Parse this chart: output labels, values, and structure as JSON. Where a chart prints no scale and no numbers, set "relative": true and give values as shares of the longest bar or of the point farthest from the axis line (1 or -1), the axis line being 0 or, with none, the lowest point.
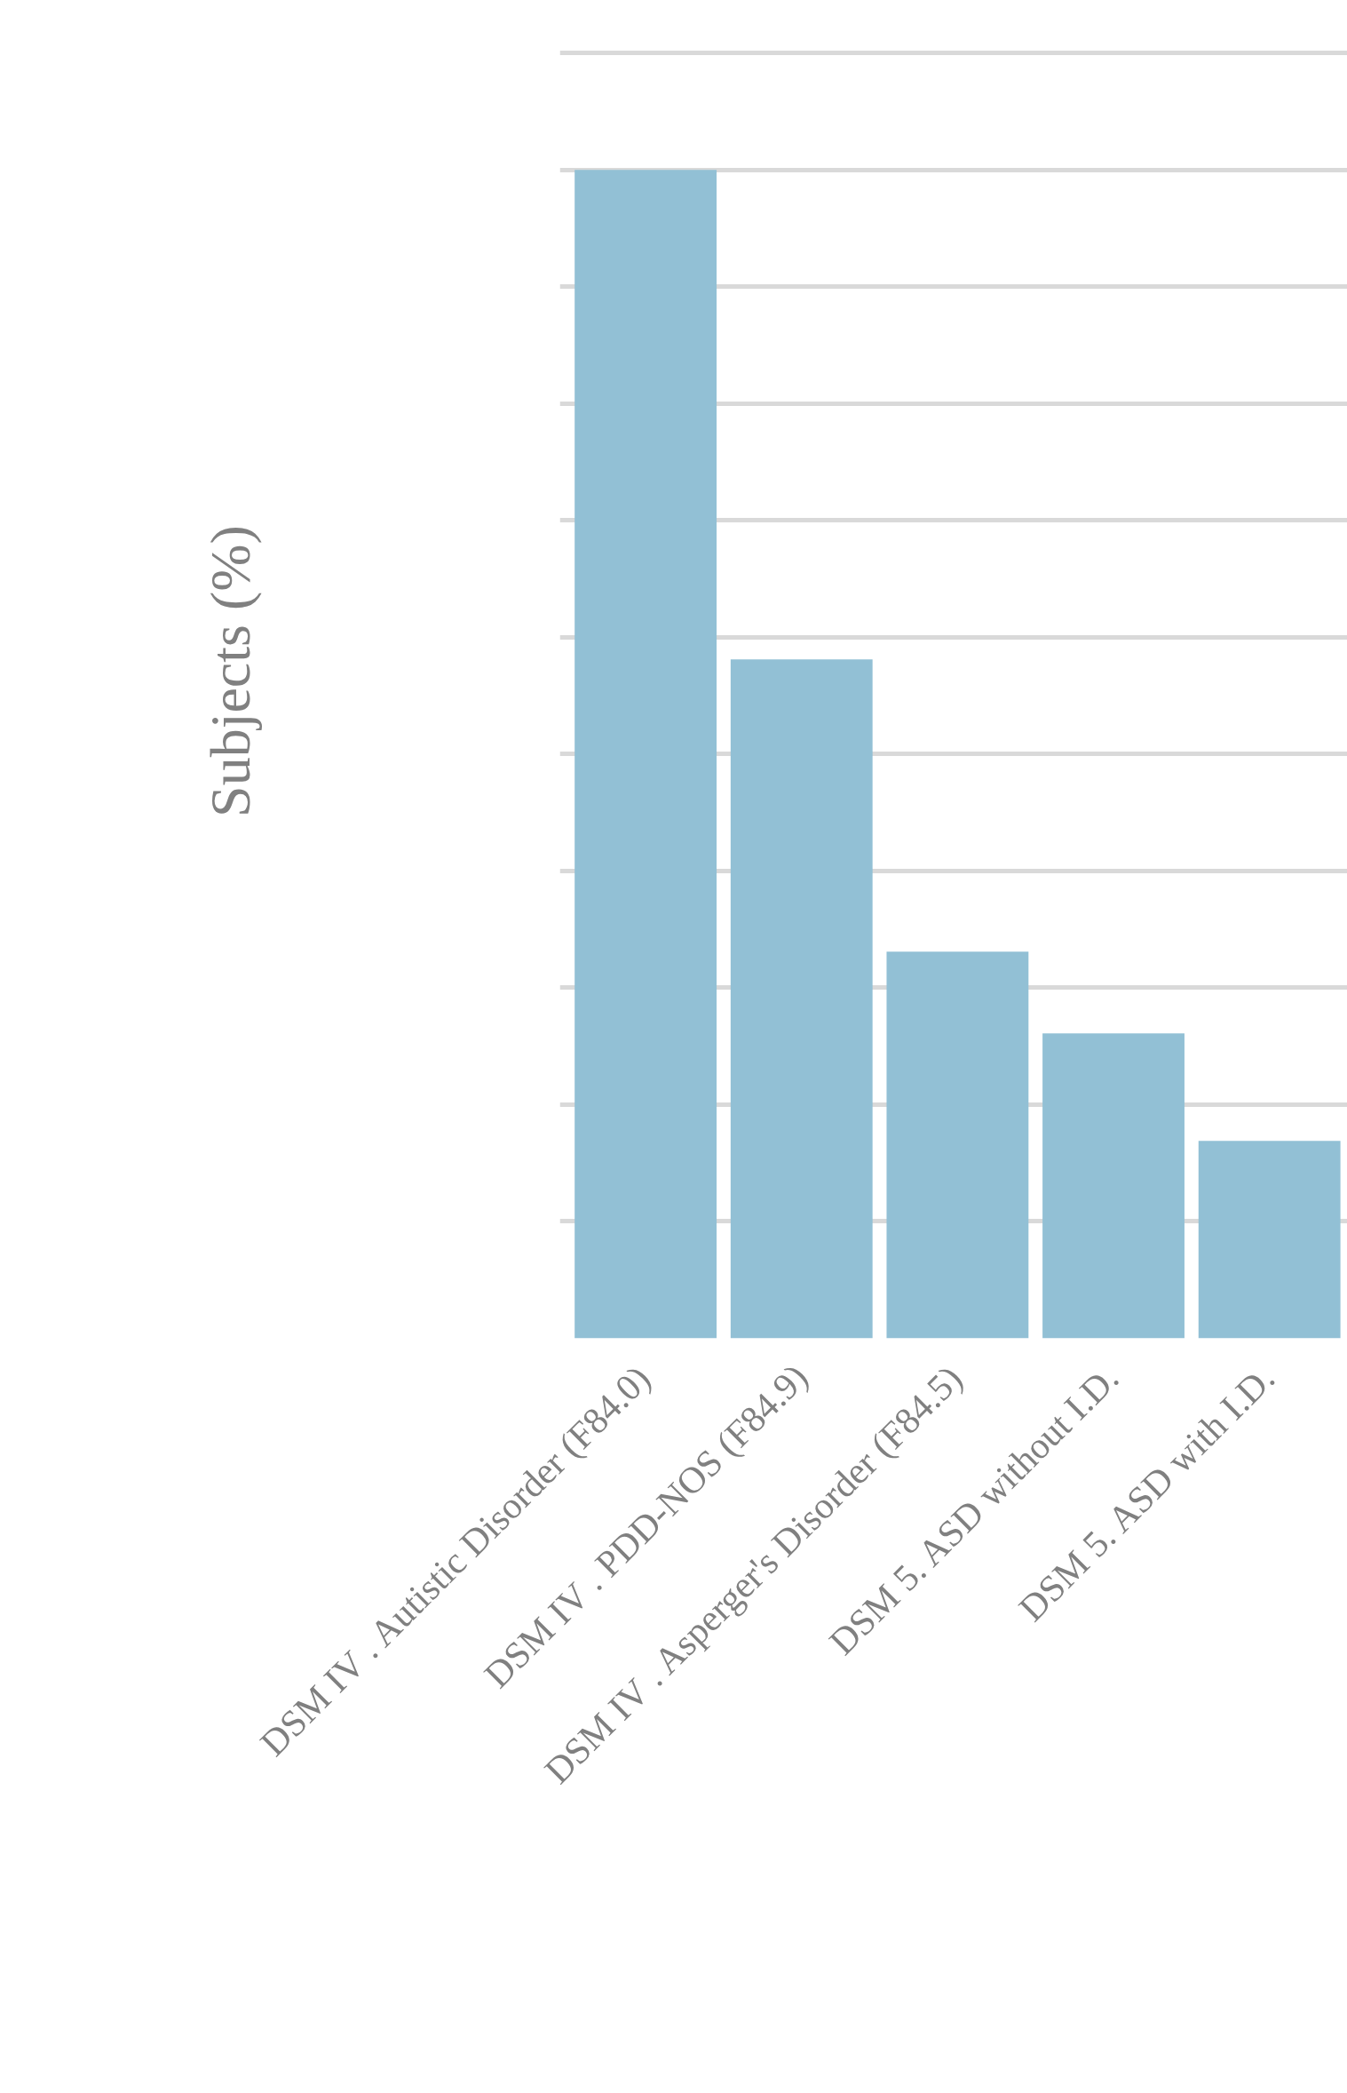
{
  "chart_data": {
    "type": "bar",
    "ylabel": "Subjects (%)",
    "categories": [
      "DSM IV . Autistic Disorder (F84.0)",
      "DSM IV . PDD-NOS (F84.9)",
      "DSM IV . Asperger's Disorder (F84.5)",
      "DSM 5. ASD without I.D.",
      "DSM 5. ASD with I.D."
    ],
    "values": [
      1,
      0.581,
      0.331,
      0.261,
      0.169
    ],
    "color": "#92c0d5",
    "relative": true,
    "grid": "y"
  }
}
